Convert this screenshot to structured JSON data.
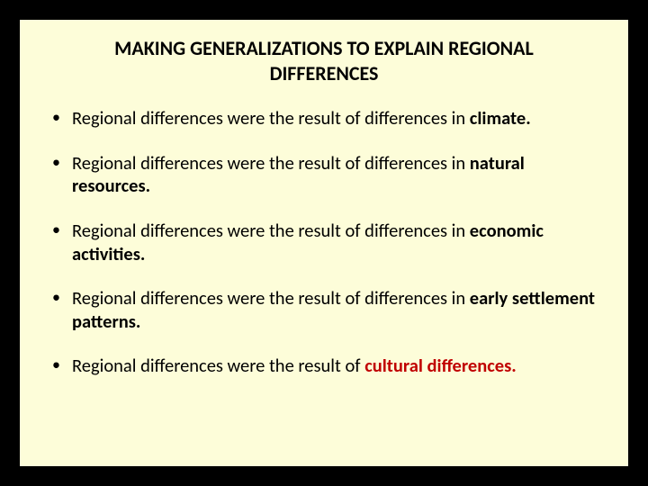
{
  "slide": {
    "background_color": "#fdfdd9",
    "border_color": "#000000",
    "title": "MAKING GENERALIZATIONS TO EXPLAIN REGIONAL DIFFERENCES",
    "title_fontsize": 22,
    "title_color": "#000000",
    "body_fontsize": 20.5,
    "body_color": "#000000",
    "highlight_color": "#c00000",
    "bullets": [
      {
        "prefix": "Regional differences were the result of differences in ",
        "bold_suffix": "climate.",
        "highlight": false
      },
      {
        "prefix": "Regional differences were the result of differences in ",
        "bold_suffix": "natural resources.",
        "highlight": false
      },
      {
        "prefix": "Regional differences were the result of differences in ",
        "bold_suffix": "economic activities.",
        "highlight": false
      },
      {
        "prefix": "Regional differences were the result of differences in ",
        "bold_suffix": "early settlement patterns.",
        "highlight": false
      },
      {
        "prefix": "Regional differences were the result of ",
        "bold_suffix": "cultural differences.",
        "highlight": true
      }
    ]
  }
}
